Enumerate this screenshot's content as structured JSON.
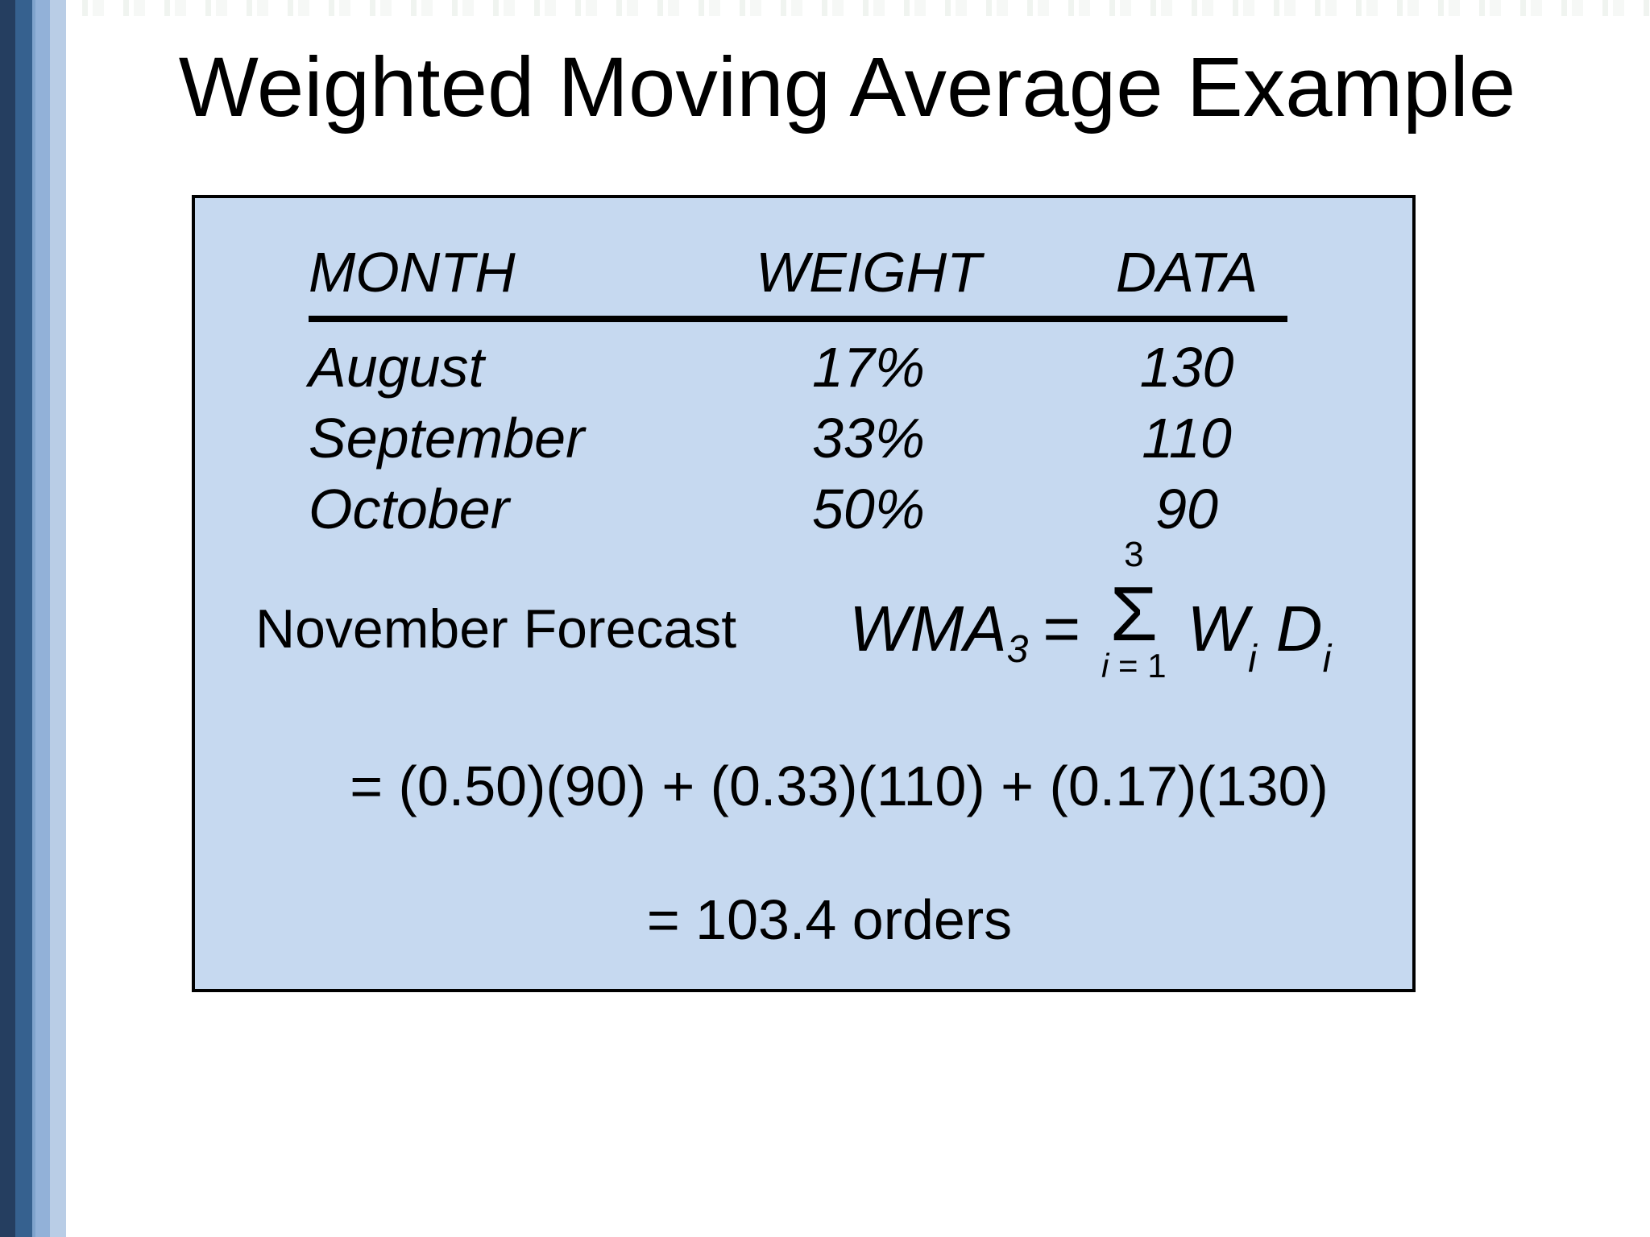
{
  "slide": {
    "title": "Weighted Moving Average Example",
    "table": {
      "headers": {
        "month": "MONTH",
        "weight": "WEIGHT",
        "data": "DATA"
      },
      "rows": [
        {
          "month": "August",
          "weight": "17%",
          "data": "130"
        },
        {
          "month": "September",
          "weight": "33%",
          "data": "110"
        },
        {
          "month": "October",
          "weight": "50%",
          "data": "90"
        }
      ]
    },
    "forecast_label": "November Forecast",
    "formula": {
      "lhs": "WMA",
      "lhs_sub": "3",
      "equals": "=",
      "sum_upper": "3",
      "sum_symbol": "Σ",
      "sum_lower_var": "i",
      "sum_lower_rest": " = 1",
      "term_w": "W",
      "term_w_sub": "i",
      "term_d": "D",
      "term_d_sub": "i"
    },
    "expansion": "= (0.50)(90) + (0.33)(110) + (0.17)(130)",
    "result": "= 103.4 orders"
  },
  "colors": {
    "background": "#FFFFFF",
    "text": "#000000",
    "box_fill": "#C6D9F0",
    "box_border": "#000000",
    "stripe_dark": "#253E60",
    "stripe_medium": "#36618F",
    "stripe_thin_light": "#7FA3CC",
    "stripe_light": "#92B1D8",
    "stripe_lighter": "#B9CDE6"
  }
}
